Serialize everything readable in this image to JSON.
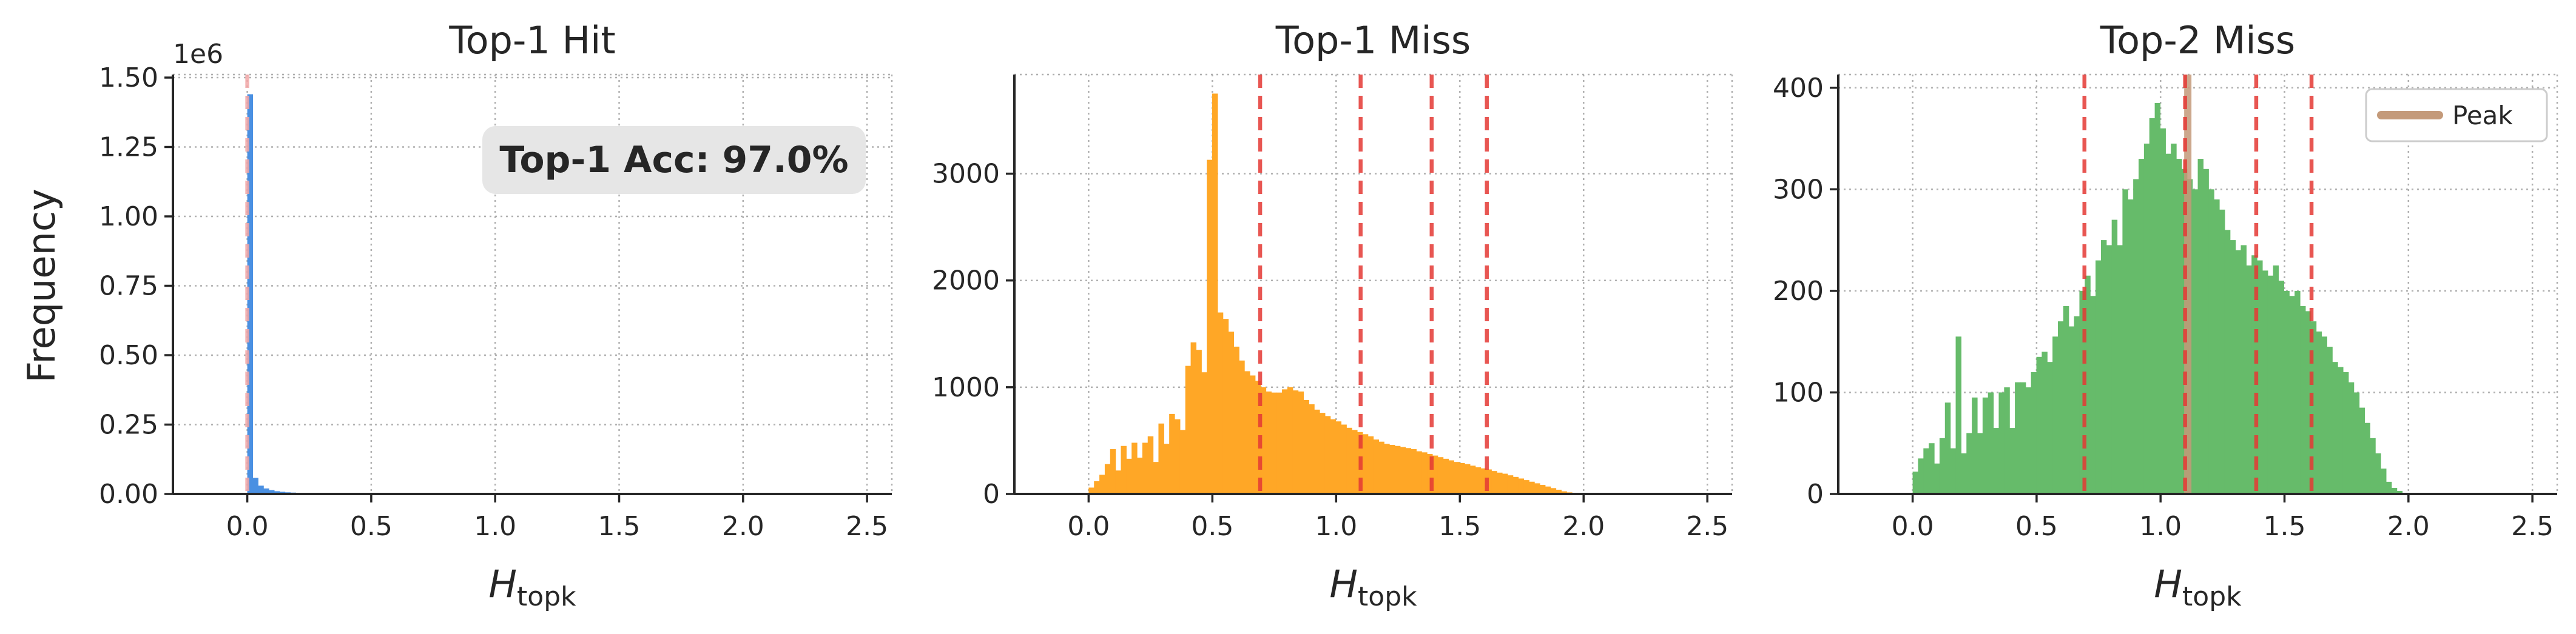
{
  "chart_data": [
    {
      "type": "bar",
      "title": "Top-1 Hit",
      "xlabel_base": "H",
      "xlabel_sub": "topk",
      "ylabel": "Frequency",
      "offset_text": "1e6",
      "annotation": "Top-1 Acc: 97.0%",
      "color": "#4a90e2",
      "xlim": [
        -0.3,
        2.6
      ],
      "ylim": [
        0,
        1.5
      ],
      "xticks": [
        0.0,
        0.5,
        1.0,
        1.5,
        2.0,
        2.5
      ],
      "xtick_labels": [
        "0.0",
        "0.5",
        "1.0",
        "1.5",
        "2.0",
        "2.5"
      ],
      "yticks": [
        0,
        0.25,
        0.5,
        0.75,
        1.0,
        1.25,
        1.5
      ],
      "ytick_labels": [
        "0.00",
        "0.25",
        "0.50",
        "0.75",
        "1.00",
        "1.25",
        "1.50"
      ],
      "bin_width": 0.0217,
      "bin_start": 0.0,
      "values": [
        1.44,
        0.058,
        0.03,
        0.02,
        0.014,
        0.01,
        0.008,
        0.006,
        0.005,
        0.004,
        0.003,
        0.003,
        0.002,
        0.002,
        0.002,
        0.001,
        0.001,
        0.001,
        0.001,
        0.001
      ],
      "vlines": [
        0.0
      ],
      "vline_color": "#f2a6a6",
      "grid": true
    },
    {
      "type": "bar",
      "title": "Top-1 Miss",
      "xlabel_base": "H",
      "xlabel_sub": "topk",
      "color": "#ffa726",
      "xlim": [
        -0.3,
        2.6
      ],
      "ylim": [
        0,
        3900
      ],
      "xticks": [
        0.0,
        0.5,
        1.0,
        1.5,
        2.0,
        2.5
      ],
      "xtick_labels": [
        "0.0",
        "0.5",
        "1.0",
        "1.5",
        "2.0",
        "2.5"
      ],
      "yticks": [
        0,
        1000,
        2000,
        3000
      ],
      "ytick_labels": [
        "0",
        "1000",
        "2000",
        "3000"
      ],
      "bin_width": 0.0217,
      "bin_start": 0.0,
      "values": [
        60,
        120,
        180,
        280,
        420,
        220,
        450,
        330,
        480,
        340,
        480,
        540,
        300,
        660,
        470,
        750,
        700,
        600,
        1200,
        1420,
        1350,
        1140,
        3130,
        3750,
        1700,
        1640,
        1520,
        1380,
        1250,
        1150,
        1110,
        1060,
        1000,
        960,
        950,
        950,
        980,
        1000,
        970,
        960,
        880,
        840,
        790,
        760,
        730,
        700,
        680,
        650,
        620,
        600,
        580,
        560,
        540,
        510,
        490,
        470,
        460,
        450,
        440,
        430,
        420,
        400,
        390,
        375,
        360,
        345,
        330,
        315,
        300,
        290,
        280,
        265,
        250,
        240,
        230,
        215,
        200,
        190,
        175,
        160,
        145,
        130,
        115,
        100,
        85,
        70,
        55,
        40,
        25,
        15,
        8,
        4,
        2,
        1
      ],
      "vlines": [
        0.693,
        1.099,
        1.386,
        1.609
      ],
      "vline_color": "#e53935",
      "grid": true
    },
    {
      "type": "bar",
      "title": "Top-2 Miss",
      "xlabel_base": "H",
      "xlabel_sub": "topk",
      "color": "#66bb6a",
      "xlim": [
        -0.3,
        2.6
      ],
      "ylim": [
        0,
        410
      ],
      "xticks": [
        0.0,
        0.5,
        1.0,
        1.5,
        2.0,
        2.5
      ],
      "xtick_labels": [
        "0.0",
        "0.5",
        "1.0",
        "1.5",
        "2.0",
        "2.5"
      ],
      "yticks": [
        0,
        100,
        200,
        300,
        400
      ],
      "ytick_labels": [
        "0",
        "100",
        "200",
        "300",
        "400"
      ],
      "bin_width": 0.0217,
      "bin_start": 0.0,
      "values": [
        22,
        35,
        45,
        50,
        30,
        55,
        90,
        45,
        155,
        40,
        60,
        95,
        60,
        95,
        100,
        65,
        100,
        105,
        65,
        110,
        110,
        105,
        120,
        135,
        140,
        130,
        155,
        170,
        185,
        165,
        175,
        200,
        215,
        195,
        230,
        250,
        245,
        270,
        245,
        300,
        290,
        310,
        330,
        345,
        370,
        385,
        360,
        335,
        345,
        330,
        320,
        310,
        300,
        330,
        320,
        300,
        290,
        280,
        260,
        250,
        240,
        245,
        225,
        235,
        230,
        220,
        215,
        225,
        210,
        200,
        195,
        200,
        185,
        180,
        170,
        160,
        155,
        145,
        130,
        125,
        120,
        110,
        100,
        85,
        70,
        55,
        40,
        25,
        12,
        6,
        3,
        1
      ],
      "vlines": [
        0.693,
        1.099,
        1.386,
        1.609
      ],
      "vline_color": "#e53935",
      "peak_x": 1.11,
      "peak_color": "#c49a7a",
      "legend": [
        "Peak"
      ],
      "legend_position": "top-right",
      "grid": true
    }
  ]
}
